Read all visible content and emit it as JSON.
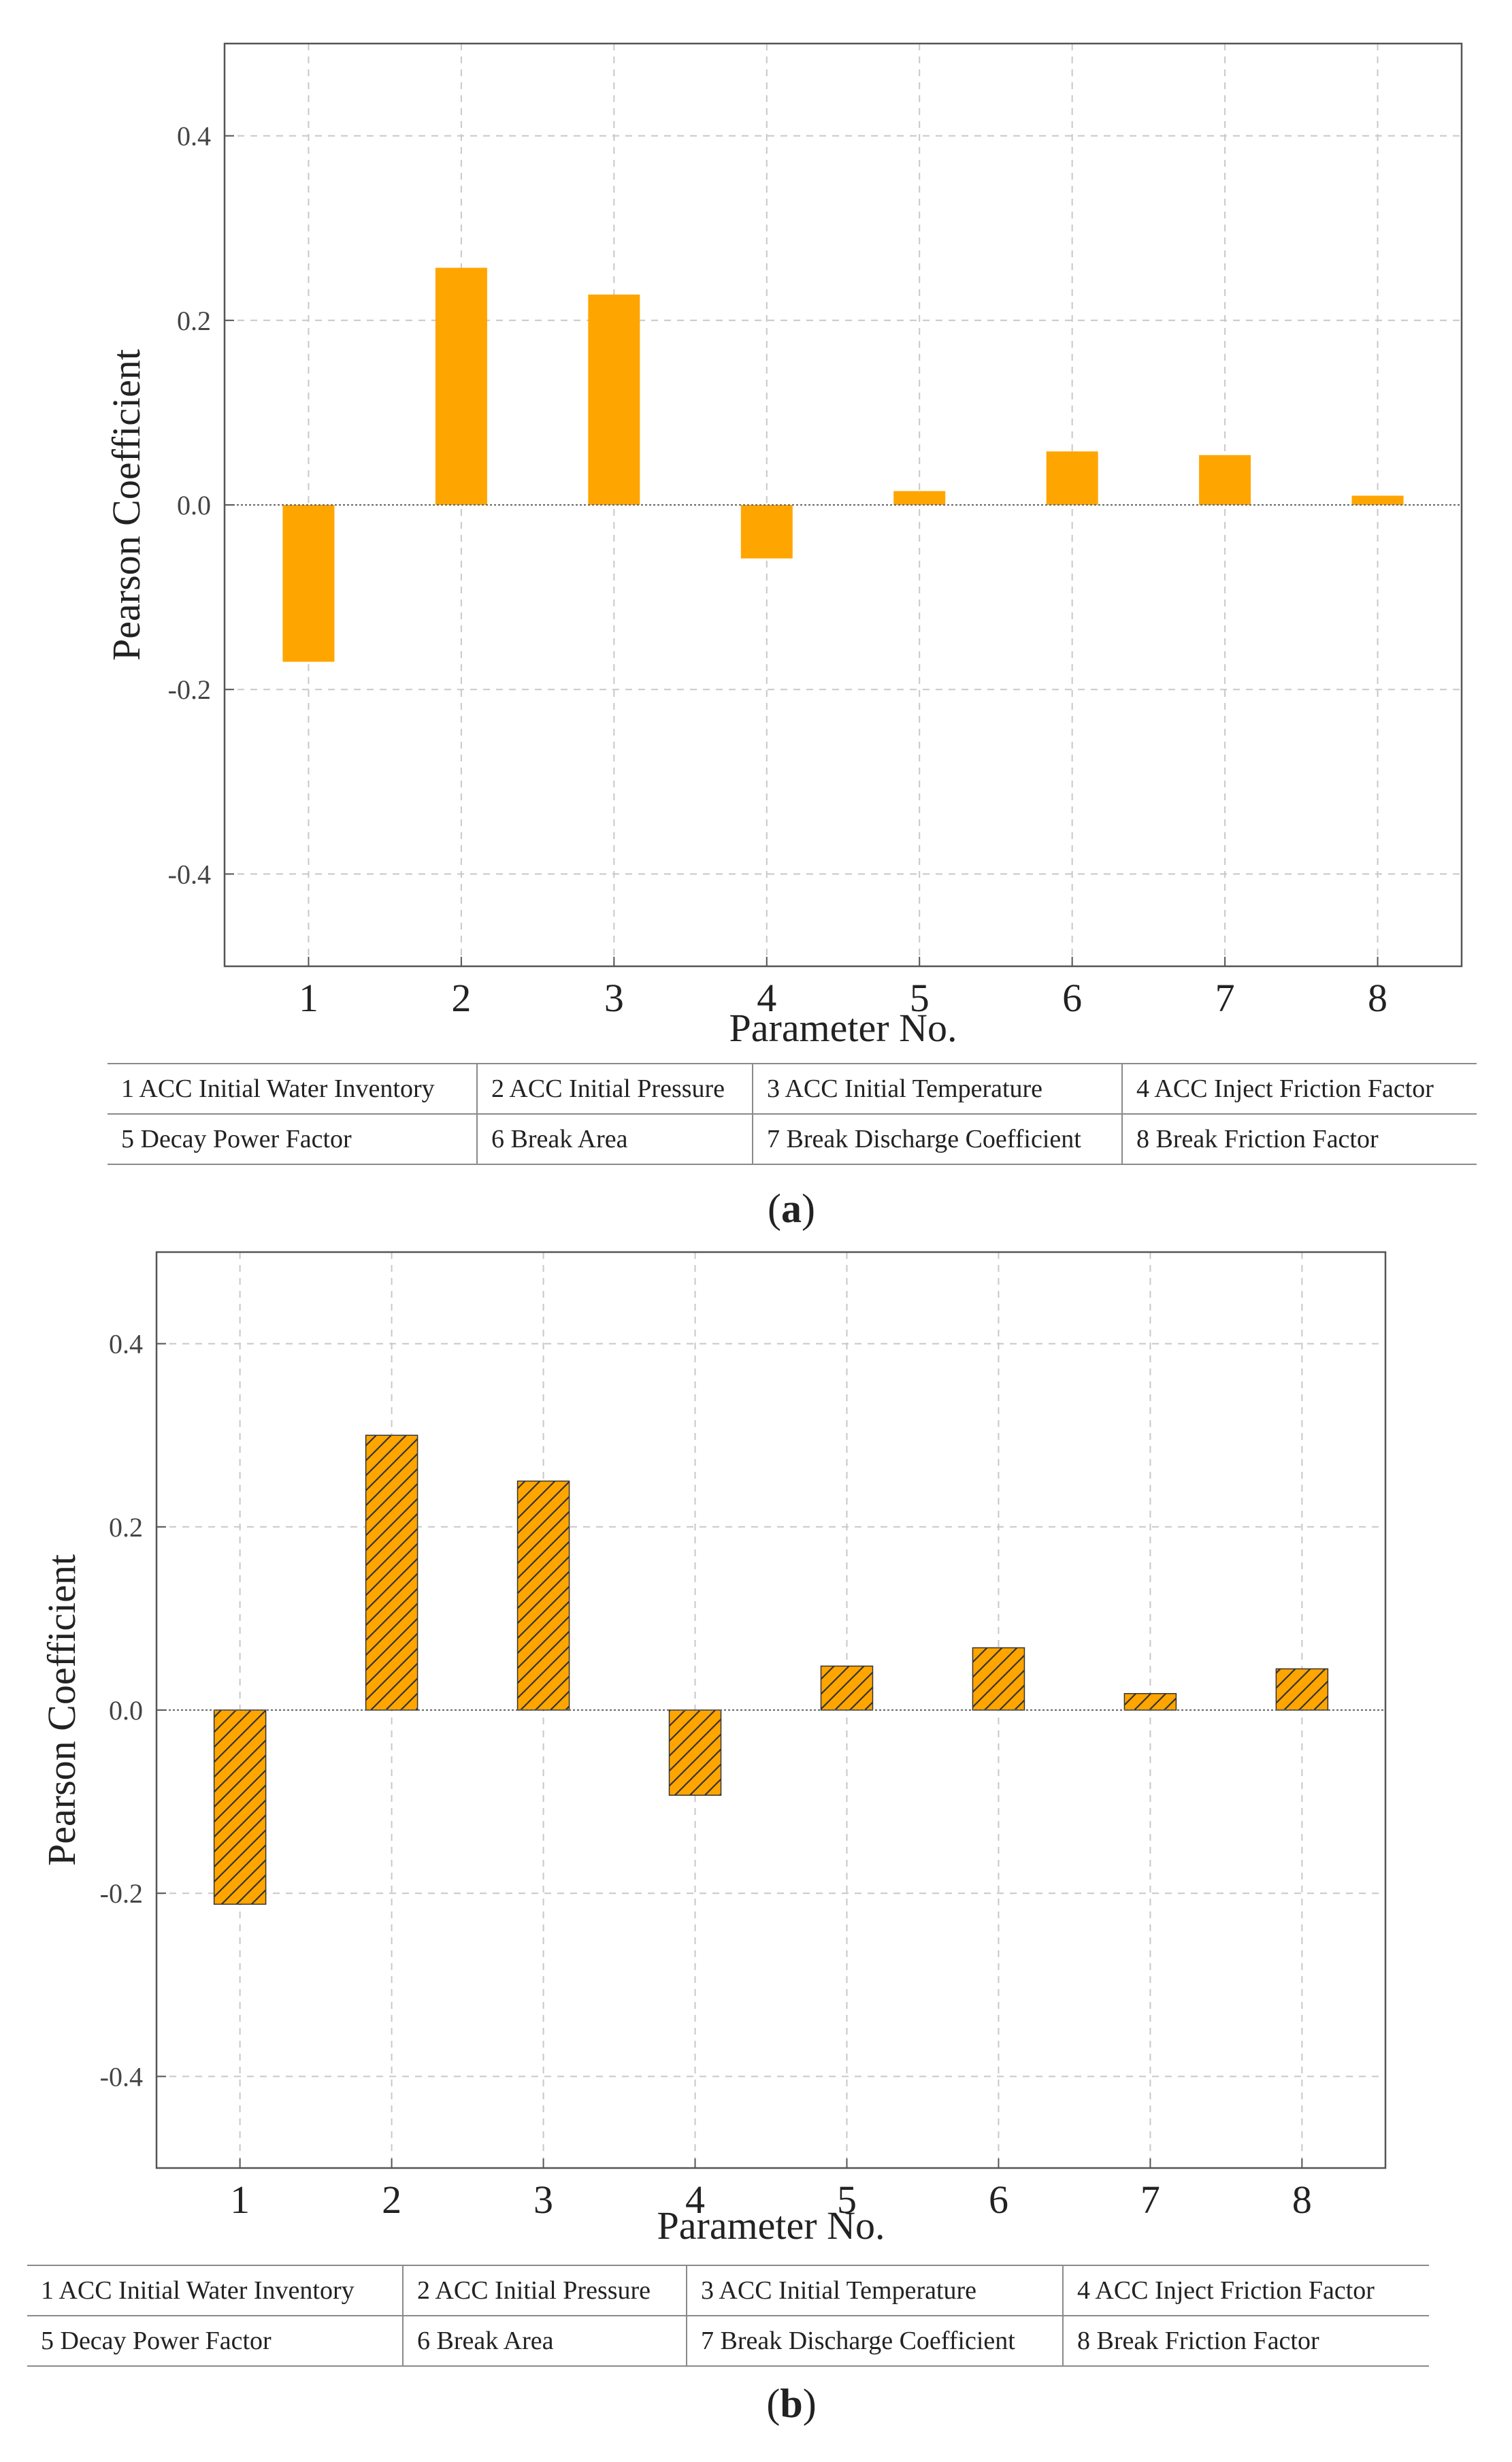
{
  "chart_data": [
    {
      "type": "bar",
      "panel": "a",
      "style": "solid",
      "color": "#FFA500",
      "categories": [
        "1",
        "2",
        "3",
        "4",
        "5",
        "6",
        "7",
        "8"
      ],
      "values": [
        -0.17,
        0.257,
        0.228,
        -0.058,
        0.015,
        0.058,
        0.054,
        0.01
      ],
      "xlabel": "Parameter No.",
      "ylabel": "Pearson Coefficient",
      "ylim": [
        -0.5,
        0.5
      ],
      "yticks": [
        0.4,
        0.2,
        0.0,
        -0.2,
        -0.4
      ],
      "ytick_labels": [
        "0.4",
        "0.2",
        "0.0",
        "-0.2",
        "-0.4"
      ],
      "grid": true
    },
    {
      "type": "bar",
      "panel": "b",
      "style": "hatched",
      "color": "#FFA500",
      "categories": [
        "1",
        "2",
        "3",
        "4",
        "5",
        "6",
        "7",
        "8"
      ],
      "values": [
        -0.212,
        0.3,
        0.25,
        -0.093,
        0.048,
        0.068,
        0.018,
        0.045
      ],
      "xlabel": "Parameter No.",
      "ylabel": "Pearson Coefficient",
      "ylim": [
        -0.5,
        0.5
      ],
      "yticks": [
        0.4,
        0.2,
        0.0,
        -0.2,
        -0.4
      ],
      "ytick_labels": [
        "0.4",
        "0.2",
        "0.0",
        "-0.2",
        "-0.4"
      ],
      "grid": true
    }
  ],
  "tables": [
    {
      "rows": [
        [
          "1 ACC Initial Water Inventory",
          "2 ACC Initial Pressure",
          "3 ACC Initial Temperature",
          "4 ACC Inject Friction Factor"
        ],
        [
          "5 Decay Power Factor",
          "6 Break Area",
          "7 Break Discharge Coefficient",
          "8 Break Friction Factor"
        ]
      ]
    },
    {
      "rows": [
        [
          "1 ACC Initial Water Inventory",
          "2 ACC Initial Pressure",
          "3 ACC Initial Temperature",
          "4 ACC Inject Friction Factor"
        ],
        [
          "5 Decay Power Factor",
          "6 Break Area",
          "7 Break Discharge Coefficient",
          "8 Break Friction Factor"
        ]
      ]
    }
  ],
  "panel_labels": [
    "a",
    "b"
  ]
}
